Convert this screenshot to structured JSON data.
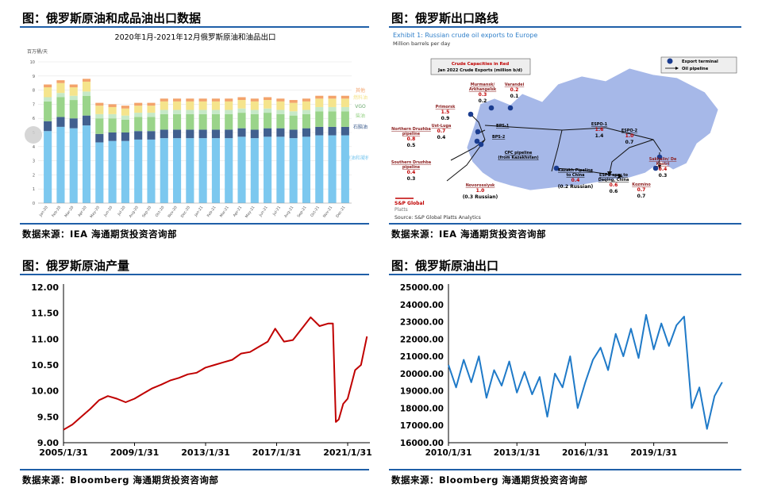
{
  "panels": {
    "p1": {
      "title": "图：俄罗斯原油和成品油出口数据",
      "source": "数据来源：IEA   海通期货投资咨询部"
    },
    "p2": {
      "title": "图：俄罗斯出口路线",
      "source": "数据来源：IEA   海通期货投资咨询部"
    },
    "p3": {
      "title": "图：俄罗斯原油产量",
      "source": "数据来源：Bloomberg   海通期货投资咨询部"
    },
    "p4": {
      "title": "图：俄罗斯原油出口",
      "source": "数据来源：Bloomberg   海通期货投资咨询部"
    }
  },
  "map": {
    "exhibit_title": "Exhibit 1: Russian crude oil exports to Europe",
    "subtitle": "Million barrels per day",
    "legend_box": [
      "Crude Capacities in Red",
      "Jan 2022 Crude Exports (million b/d)"
    ],
    "legend_terminal": "Export terminal",
    "legend_pipeline": "Oil pipeline",
    "source": "Source: S&P Global Platts Analytics",
    "logo": [
      "S&P Global",
      "Platts"
    ],
    "labels": [
      {
        "name": "Murmansk/ Arkhangelsk",
        "cap": "0.3",
        "exp": "0.2"
      },
      {
        "name": "Varandei",
        "cap": "0.2",
        "exp": "0.1"
      },
      {
        "name": "Primorsk",
        "cap": "1.5",
        "exp": "0.9"
      },
      {
        "name": "Ust-Luga",
        "cap": "0.7",
        "exp": "0.4"
      },
      {
        "name": "Northern Druzhba pipeline",
        "cap": "0.8",
        "exp": "0.5"
      },
      {
        "name": "Southern Druzhba pipeline",
        "cap": "0.4",
        "exp": "0.3"
      },
      {
        "name": "Novorossiysk",
        "cap": "1.0",
        "exp": "(0.3 Russian)"
      },
      {
        "name": "CPC pipeline (from Kazakhstan)",
        "cap": "",
        "exp": ""
      },
      {
        "name": "Kazakh Pipeline to China",
        "cap": "0.4",
        "exp": "(0.2 Russian)"
      },
      {
        "name": "ESPO-1",
        "cap": "1.6",
        "exp": "1.4"
      },
      {
        "name": "ESPO-2",
        "cap": "1.0",
        "exp": "0.7"
      },
      {
        "name": "ESPO spur to Daqing, China",
        "cap": "0.6",
        "exp": "0.6"
      },
      {
        "name": "Kozmino",
        "cap": "0.7",
        "exp": "0.7"
      },
      {
        "name": "Sakhalin/ De Kastri",
        "cap": "0.4",
        "exp": "0.3"
      },
      {
        "name": "BPS-1",
        "cap": "",
        "exp": ""
      },
      {
        "name": "BPS-2",
        "cap": "",
        "exp": ""
      }
    ]
  },
  "chart_data": [
    {
      "type": "bar",
      "title": "2020年1月-2021年12月俄罗斯原油和油品出口",
      "ylabel": "百万桶/天",
      "ylim": [
        0,
        10
      ],
      "yticks": [
        "0",
        "1",
        "2",
        "3",
        "4",
        "5",
        "6",
        "7",
        "8",
        "9",
        "10"
      ],
      "categories": [
        "Jan-20",
        "Feb-20",
        "Mar-20",
        "Apr-20",
        "May-20",
        "Jun-20",
        "Jul-20",
        "Aug-20",
        "Sep-20",
        "Oct-20",
        "Nov-20",
        "Dec-20",
        "Jan-21",
        "Feb-21",
        "Mar-21",
        "Apr-21",
        "May-21",
        "Jun-21",
        "Jul-21",
        "Aug-21",
        "Sep-21",
        "Oct-21",
        "Nov-21",
        "Dec-21"
      ],
      "series": [
        {
          "name": "原油和凝析油",
          "color": "#7cc8ef",
          "values": [
            5.1,
            5.4,
            5.3,
            5.5,
            4.3,
            4.4,
            4.4,
            4.5,
            4.5,
            4.6,
            4.6,
            4.6,
            4.6,
            4.6,
            4.6,
            4.7,
            4.6,
            4.7,
            4.7,
            4.6,
            4.7,
            4.8,
            4.8,
            4.8
          ]
        },
        {
          "name": "石脑油",
          "color": "#41608f",
          "values": [
            0.7,
            0.7,
            0.7,
            0.7,
            0.6,
            0.6,
            0.6,
            0.6,
            0.6,
            0.6,
            0.6,
            0.6,
            0.6,
            0.6,
            0.6,
            0.6,
            0.6,
            0.6,
            0.6,
            0.6,
            0.6,
            0.6,
            0.6,
            0.6
          ]
        },
        {
          "name": "柴油",
          "color": "#9ad48a",
          "values": [
            1.4,
            1.4,
            1.3,
            1.4,
            1.1,
            1.0,
            0.9,
            1.0,
            1.0,
            1.1,
            1.1,
            1.1,
            1.1,
            1.1,
            1.1,
            1.1,
            1.1,
            1.1,
            1.0,
            1.0,
            1.0,
            1.1,
            1.1,
            1.1
          ]
        },
        {
          "name": "VGO",
          "color": "#c6e9c7",
          "values": [
            0.3,
            0.3,
            0.3,
            0.3,
            0.3,
            0.3,
            0.3,
            0.3,
            0.3,
            0.3,
            0.3,
            0.3,
            0.3,
            0.3,
            0.3,
            0.3,
            0.3,
            0.3,
            0.3,
            0.3,
            0.3,
            0.3,
            0.3,
            0.3
          ]
        },
        {
          "name": "燃料油",
          "color": "#f5e48c",
          "values": [
            0.7,
            0.7,
            0.6,
            0.7,
            0.6,
            0.5,
            0.5,
            0.5,
            0.5,
            0.6,
            0.6,
            0.6,
            0.6,
            0.6,
            0.6,
            0.6,
            0.6,
            0.6,
            0.6,
            0.6,
            0.6,
            0.6,
            0.6,
            0.6
          ]
        },
        {
          "name": "其他",
          "color": "#f3a36b",
          "values": [
            0.2,
            0.2,
            0.2,
            0.2,
            0.2,
            0.2,
            0.2,
            0.2,
            0.2,
            0.2,
            0.2,
            0.2,
            0.2,
            0.2,
            0.2,
            0.2,
            0.2,
            0.2,
            0.2,
            0.2,
            0.2,
            0.2,
            0.2,
            0.2
          ]
        }
      ],
      "legend": [
        "其他",
        "燃料油",
        "VGO",
        "柴油",
        "石脑油",
        "原油和凝析油"
      ]
    },
    {
      "type": "line",
      "ylim": [
        9.0,
        12.0
      ],
      "yticks": [
        "9.00",
        "9.50",
        "10.00",
        "10.50",
        "11.00",
        "11.50",
        "12.00"
      ],
      "xticks": [
        "2005/1/31",
        "2009/1/31",
        "2013/1/31",
        "2017/1/31",
        "2021/1/31"
      ],
      "xlim": [
        "2005-01",
        "2022-04"
      ],
      "color": "#c00000",
      "x": [
        "2005-01",
        "2005-07",
        "2006-01",
        "2006-07",
        "2007-01",
        "2007-07",
        "2008-01",
        "2008-07",
        "2009-01",
        "2009-07",
        "2010-01",
        "2010-07",
        "2011-01",
        "2011-07",
        "2012-01",
        "2012-07",
        "2013-01",
        "2013-07",
        "2014-01",
        "2014-07",
        "2015-01",
        "2015-07",
        "2016-01",
        "2016-07",
        "2016-12",
        "2017-06",
        "2017-12",
        "2018-06",
        "2018-12",
        "2019-06",
        "2019-12",
        "2020-03",
        "2020-05",
        "2020-07",
        "2020-10",
        "2021-01",
        "2021-06",
        "2021-10",
        "2022-02"
      ],
      "values": [
        9.25,
        9.35,
        9.5,
        9.65,
        9.82,
        9.9,
        9.85,
        9.78,
        9.85,
        9.95,
        10.05,
        10.12,
        10.2,
        10.25,
        10.32,
        10.35,
        10.45,
        10.5,
        10.55,
        10.6,
        10.72,
        10.75,
        10.85,
        10.95,
        11.2,
        10.95,
        10.98,
        11.2,
        11.42,
        11.25,
        11.3,
        11.3,
        9.4,
        9.45,
        9.75,
        9.85,
        10.4,
        10.5,
        11.05
      ]
    },
    {
      "type": "line",
      "ylim": [
        16000,
        25000
      ],
      "yticks": [
        "16000.00",
        "17000.00",
        "18000.00",
        "19000.00",
        "20000.00",
        "21000.00",
        "22000.00",
        "23000.00",
        "24000.00",
        "25000.00"
      ],
      "xticks": [
        "2010/1/31",
        "2013/1/31",
        "2016/1/31",
        "2019/1/31"
      ],
      "xlim": [
        "2010-01",
        "2022-04"
      ],
      "color": "#1f7ac8",
      "x": [
        "2010-01",
        "2010-05",
        "2010-09",
        "2011-01",
        "2011-05",
        "2011-09",
        "2012-01",
        "2012-05",
        "2012-09",
        "2013-01",
        "2013-05",
        "2013-09",
        "2014-01",
        "2014-05",
        "2014-09",
        "2015-01",
        "2015-05",
        "2015-09",
        "2016-01",
        "2016-05",
        "2016-09",
        "2017-01",
        "2017-05",
        "2017-09",
        "2018-01",
        "2018-05",
        "2018-09",
        "2019-01",
        "2019-05",
        "2019-09",
        "2020-01",
        "2020-05",
        "2020-09",
        "2021-01",
        "2021-05",
        "2021-09",
        "2022-01"
      ],
      "values": [
        20500,
        19200,
        20800,
        19500,
        21000,
        18600,
        20200,
        19300,
        20700,
        18900,
        20100,
        18800,
        19800,
        17500,
        20000,
        19200,
        21000,
        18000,
        19500,
        20800,
        21500,
        20200,
        22300,
        21000,
        22600,
        20900,
        23400,
        21400,
        22900,
        21600,
        22800,
        23300,
        18000,
        19200,
        16800,
        18700,
        19500
      ]
    }
  ]
}
